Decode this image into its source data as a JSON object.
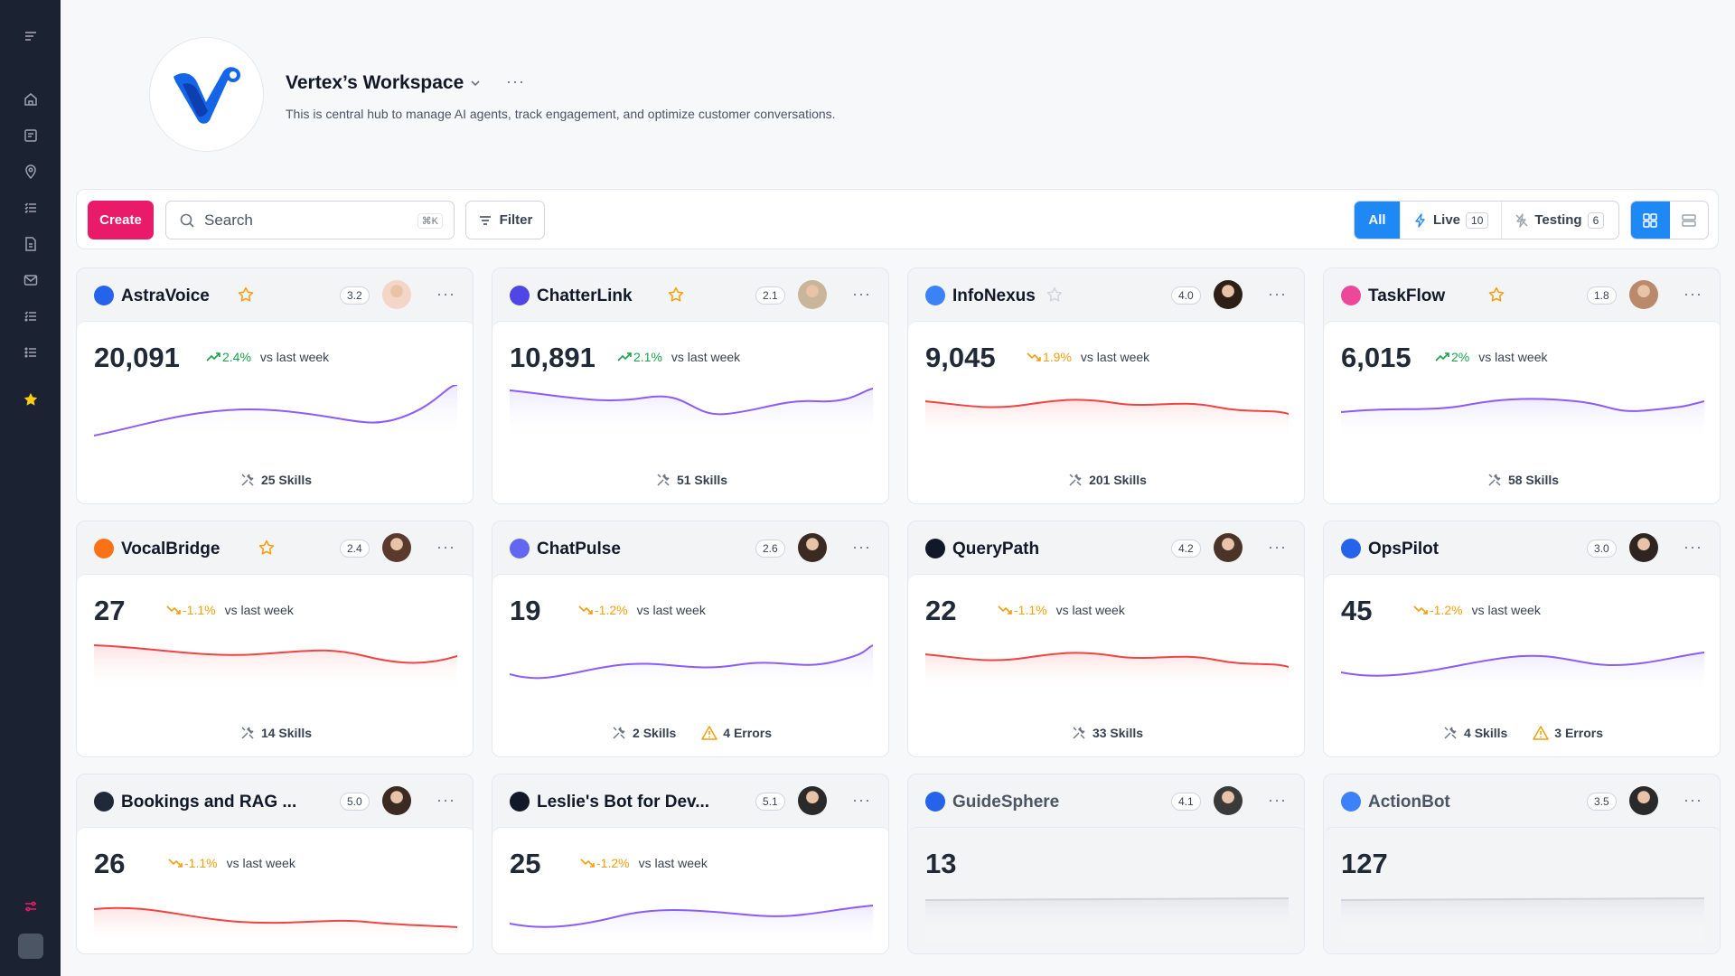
{
  "workspace": {
    "title": "Vertex’s Workspace",
    "description": "This is central hub to manage AI agents, track engagement, and optimize customer conversations."
  },
  "toolbar": {
    "create_label": "Create",
    "search_placeholder": "Search",
    "search_shortcut": "⌘K",
    "filter_label": "Filter",
    "segments": {
      "all": "All",
      "live": "Live",
      "live_count": "10",
      "testing": "Testing",
      "testing_count": "6"
    }
  },
  "sidebar": {
    "items": [
      "menu-icon",
      "home-icon",
      "calendar-icon",
      "location-icon",
      "checklist-icon",
      "document-icon",
      "mail-icon",
      "tasks-icon",
      "list-icon",
      "star-icon"
    ],
    "accent": "#facc15",
    "bottom": [
      "settings-sliders-icon",
      "user-avatar"
    ]
  },
  "colors": {
    "primary": "#1e88f5",
    "create": "#ea1a6b",
    "up": "#16a34a",
    "down": "#f59e0b",
    "purple_line": "#8b5cf6",
    "red_line": "#ef4444"
  },
  "agents": [
    {
      "name": "AstraVoice",
      "starred": true,
      "score": "3.2",
      "metric": "20,091",
      "trend": "2.4%",
      "dir": "up",
      "vs": "vs last week",
      "skills": "25 Skills",
      "errors": "",
      "line": "purple",
      "icon_color": "#2563eb"
    },
    {
      "name": "ChatterLink",
      "starred": true,
      "score": "2.1",
      "metric": "10,891",
      "trend": "2.1%",
      "dir": "up",
      "vs": "vs last week",
      "skills": "51 Skills",
      "errors": "",
      "line": "purple",
      "icon_color": "#4f46e5"
    },
    {
      "name": "InfoNexus",
      "starred": false,
      "score": "4.0",
      "metric": "9,045",
      "trend": "1.9%",
      "dir": "down",
      "vs": "vs last week",
      "skills": "201 Skills",
      "errors": "",
      "line": "red",
      "icon_color": "#3b82f6"
    },
    {
      "name": "TaskFlow",
      "starred": true,
      "score": "1.8",
      "metric": "6,015",
      "trend": "2%",
      "dir": "up",
      "vs": "vs last week",
      "skills": "58 Skills",
      "errors": "",
      "line": "purple",
      "icon_color": "#ec4899"
    },
    {
      "name": "VocalBridge",
      "starred": true,
      "score": "2.4",
      "metric": "27",
      "trend": "-1.1%",
      "dir": "down",
      "vs": "vs last week",
      "skills": "14 Skills",
      "errors": "",
      "line": "red",
      "icon_color": "#f97316"
    },
    {
      "name": "ChatPulse",
      "starred": false,
      "score": "2.6",
      "metric": "19",
      "trend": "-1.2%",
      "dir": "down",
      "vs": "vs last week",
      "skills": "2 Skills",
      "errors": "4 Errors",
      "line": "purple",
      "icon_color": "#6366f1"
    },
    {
      "name": "QueryPath",
      "starred": false,
      "score": "4.2",
      "metric": "22",
      "trend": "-1.1%",
      "dir": "down",
      "vs": "vs last week",
      "skills": "33 Skills",
      "errors": "",
      "line": "red",
      "icon_color": "#111827"
    },
    {
      "name": "OpsPilot",
      "starred": false,
      "score": "3.0",
      "metric": "45",
      "trend": "-1.2%",
      "dir": "down",
      "vs": "vs last week",
      "skills": "4 Skills",
      "errors": "3 Errors",
      "line": "purple",
      "icon_color": "#2563eb"
    },
    {
      "name": "Bookings and RAG ...",
      "starred": false,
      "score": "5.0",
      "metric": "26",
      "trend": "-1.1%",
      "dir": "down",
      "vs": "vs last week",
      "skills": "",
      "errors": "",
      "line": "red",
      "icon_color": "#1f2937"
    },
    {
      "name": "Leslie's Bot for Dev...",
      "starred": false,
      "score": "5.1",
      "metric": "25",
      "trend": "-1.2%",
      "dir": "down",
      "vs": "vs last week",
      "skills": "",
      "errors": "",
      "line": "purple",
      "icon_color": "#111827"
    },
    {
      "name": "GuideSphere",
      "starred": false,
      "score": "4.1",
      "metric": "13",
      "trend": "",
      "dir": "none",
      "vs": "",
      "skills": "",
      "errors": "",
      "line": "gray",
      "icon_color": "#2563eb",
      "disabled": true
    },
    {
      "name": "ActionBot",
      "starred": false,
      "score": "3.5",
      "metric": "127",
      "trend": "",
      "dir": "none",
      "vs": "",
      "skills": "",
      "errors": "",
      "line": "gray",
      "icon_color": "#3b82f6",
      "disabled": true
    }
  ]
}
